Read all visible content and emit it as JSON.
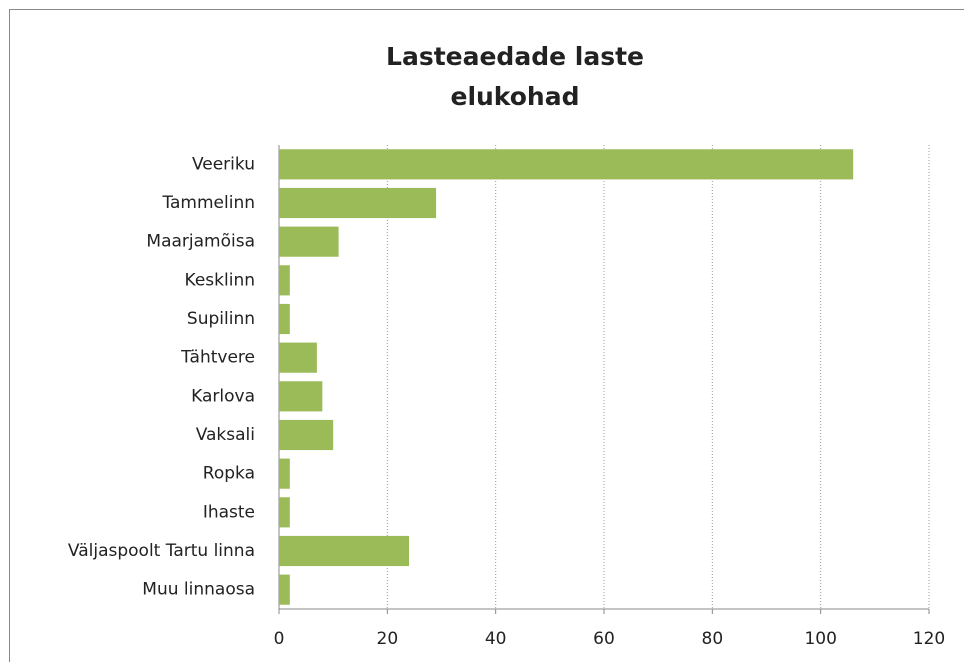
{
  "chart_data": {
    "type": "hbar",
    "title": [
      "Lasteaedade laste",
      "elukohad"
    ],
    "categories": [
      "Veeriku",
      "Tammelinn",
      "Maarjamõisa",
      "Kesklinn",
      "Supilinn",
      "Tähtvere",
      "Karlova",
      "Vaksali",
      "Ropka",
      "Ihaste",
      "Väljaspoolt Tartu linna",
      "Muu linnaosa"
    ],
    "values": [
      106,
      29,
      11,
      2,
      2,
      7,
      8,
      10,
      2,
      2,
      24,
      2
    ],
    "color": "#9bbb59",
    "xlim": [
      0,
      120
    ],
    "xticks": [
      0,
      20,
      40,
      60,
      80,
      100,
      120
    ],
    "grid": true
  }
}
